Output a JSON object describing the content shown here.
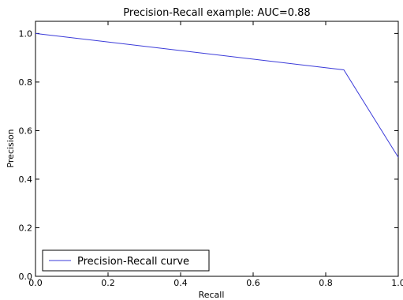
{
  "chart_data": {
    "type": "line",
    "title": "Precision-Recall example: AUC=0.88",
    "xlabel": "Recall",
    "ylabel": "Precision",
    "xlim": [
      0.0,
      1.0
    ],
    "ylim": [
      0.0,
      1.05
    ],
    "xticks": [
      "0.0",
      "0.2",
      "0.4",
      "0.6",
      "0.8",
      "1.0"
    ],
    "yticks": [
      "0.0",
      "0.2",
      "0.4",
      "0.6",
      "0.8",
      "1.0"
    ],
    "grid": false,
    "legend_position": "lower-left",
    "series": [
      {
        "name": "Precision-Recall curve",
        "color": "#3b3bd9",
        "x": [
          0.0,
          0.85,
          1.0
        ],
        "y": [
          1.0,
          0.85,
          0.49
        ]
      }
    ]
  }
}
